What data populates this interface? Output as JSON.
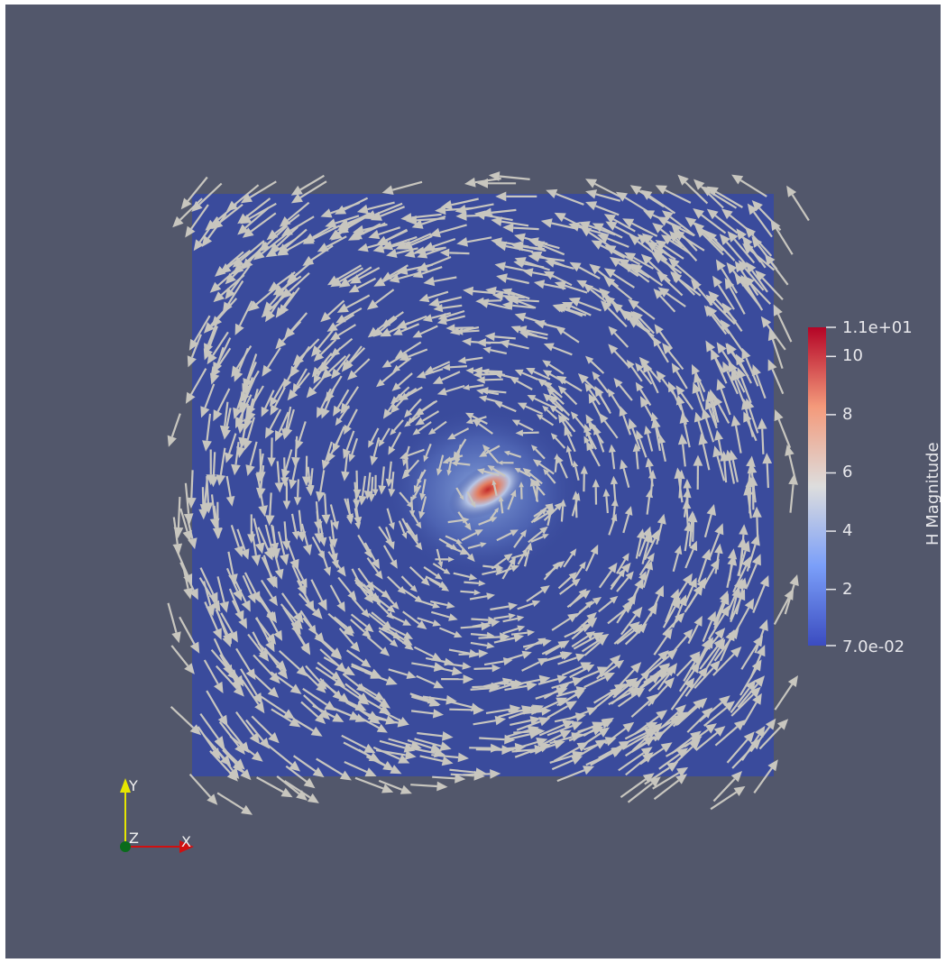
{
  "viewport": {
    "background": "#52576b"
  },
  "colorbar": {
    "title": "H Magnitude",
    "min_label": "7.0e-02",
    "max_label": "1.1e+01",
    "min_value": 0.07,
    "max_value": 11,
    "ticks": [
      "10",
      "8",
      "6",
      "4",
      "2"
    ],
    "tick_values": [
      10,
      8,
      6,
      4,
      2
    ],
    "colormap": "cool-to-warm",
    "colors": {
      "low": "#3b4cc0",
      "mid": "#dddddd",
      "high": "#b40426"
    }
  },
  "axes": {
    "x_label": "X",
    "y_label": "Y",
    "z_label": "Z"
  },
  "field": {
    "domain_color": "#3a4b9c",
    "glyph_color": "#c8c6bf",
    "rotation": "counter-clockwise vortex",
    "peak_value": 11
  }
}
